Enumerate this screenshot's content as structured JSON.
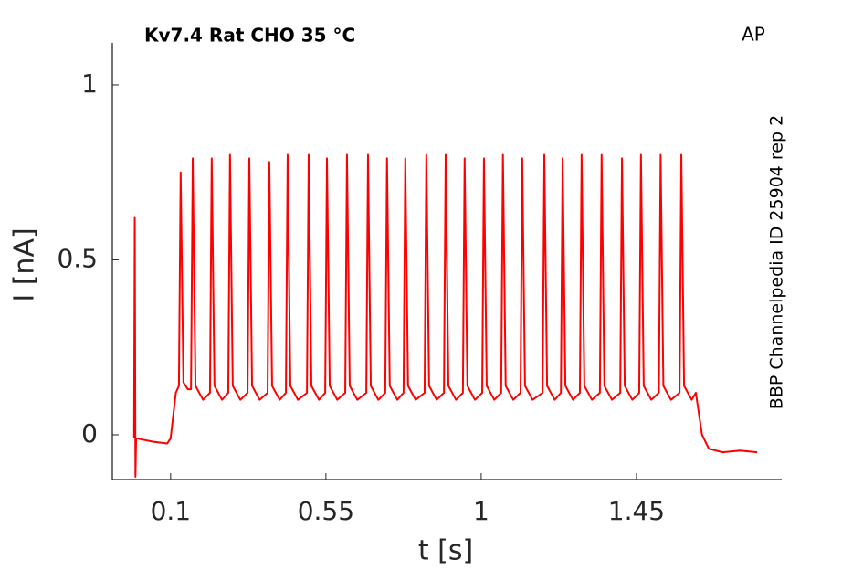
{
  "chart_data": {
    "type": "line",
    "title": "Kv7.4  Rat  CHO  35 °C",
    "annotation": "AP",
    "side_note": "BBP Channelpedia ID 25904 rep 2",
    "x_label": "t [s]",
    "y_label": "I [nA]",
    "xlim": [
      -0.069,
      1.871
    ],
    "ylim": [
      -0.128,
      1.12
    ],
    "xticks": [
      0.1,
      0.55,
      1,
      1.45
    ],
    "yticks": [
      0,
      0.5,
      1
    ],
    "grid": false,
    "series": [
      {
        "color": "#ff0000",
        "x": [
          -0.006,
          -0.004,
          -0.002,
          0,
          0.05,
          0.09,
          0.1,
          0.115,
          0.124,
          0.129,
          0.137,
          0.15,
          0.159,
          0.164,
          0.172,
          0.194,
          0.214,
          0.219,
          0.227,
          0.249,
          0.267,
          0.272,
          0.28,
          0.302,
          0.323,
          0.328,
          0.336,
          0.358,
          0.381,
          0.386,
          0.394,
          0.416,
          0.434,
          0.439,
          0.447,
          0.469,
          0.495,
          0.5,
          0.508,
          0.53,
          0.548,
          0.553,
          0.561,
          0.583,
          0.606,
          0.611,
          0.619,
          0.641,
          0.667,
          0.672,
          0.68,
          0.702,
          0.722,
          0.727,
          0.735,
          0.757,
          0.775,
          0.78,
          0.788,
          0.81,
          0.836,
          0.841,
          0.849,
          0.871,
          0.892,
          0.897,
          0.905,
          0.927,
          0.947,
          0.952,
          0.96,
          0.982,
          1.003,
          1.008,
          1.016,
          1.038,
          1.058,
          1.063,
          1.071,
          1.093,
          1.114,
          1.119,
          1.127,
          1.149,
          1.178,
          1.183,
          1.191,
          1.213,
          1.231,
          1.236,
          1.244,
          1.266,
          1.286,
          1.291,
          1.299,
          1.321,
          1.344,
          1.349,
          1.357,
          1.379,
          1.403,
          1.408,
          1.416,
          1.438,
          1.458,
          1.463,
          1.471,
          1.493,
          1.515,
          1.52,
          1.528,
          1.55,
          1.575,
          1.58,
          1.588,
          1.61,
          1.622,
          1.64,
          1.66,
          1.7,
          1.75,
          1.8
        ],
        "values": [
          -0.01,
          0.62,
          -0.12,
          -0.01,
          -0.02,
          -0.025,
          -0.01,
          0.12,
          0.14,
          0.75,
          0.15,
          0.13,
          0.13,
          0.79,
          0.14,
          0.1,
          0.12,
          0.79,
          0.14,
          0.1,
          0.12,
          0.8,
          0.14,
          0.1,
          0.12,
          0.79,
          0.14,
          0.1,
          0.12,
          0.78,
          0.14,
          0.1,
          0.12,
          0.8,
          0.14,
          0.1,
          0.12,
          0.8,
          0.14,
          0.1,
          0.12,
          0.79,
          0.14,
          0.1,
          0.12,
          0.8,
          0.14,
          0.1,
          0.12,
          0.8,
          0.14,
          0.1,
          0.12,
          0.79,
          0.14,
          0.1,
          0.12,
          0.79,
          0.14,
          0.1,
          0.12,
          0.8,
          0.14,
          0.1,
          0.12,
          0.8,
          0.14,
          0.1,
          0.12,
          0.79,
          0.14,
          0.1,
          0.12,
          0.79,
          0.14,
          0.1,
          0.12,
          0.8,
          0.14,
          0.1,
          0.12,
          0.79,
          0.14,
          0.1,
          0.12,
          0.8,
          0.14,
          0.1,
          0.12,
          0.79,
          0.14,
          0.1,
          0.12,
          0.8,
          0.14,
          0.1,
          0.12,
          0.8,
          0.14,
          0.1,
          0.12,
          0.79,
          0.14,
          0.1,
          0.12,
          0.8,
          0.14,
          0.1,
          0.12,
          0.8,
          0.14,
          0.1,
          0.12,
          0.8,
          0.14,
          0.1,
          0.12,
          0.0,
          -0.04,
          -0.05,
          -0.045,
          -0.05
        ]
      }
    ]
  }
}
